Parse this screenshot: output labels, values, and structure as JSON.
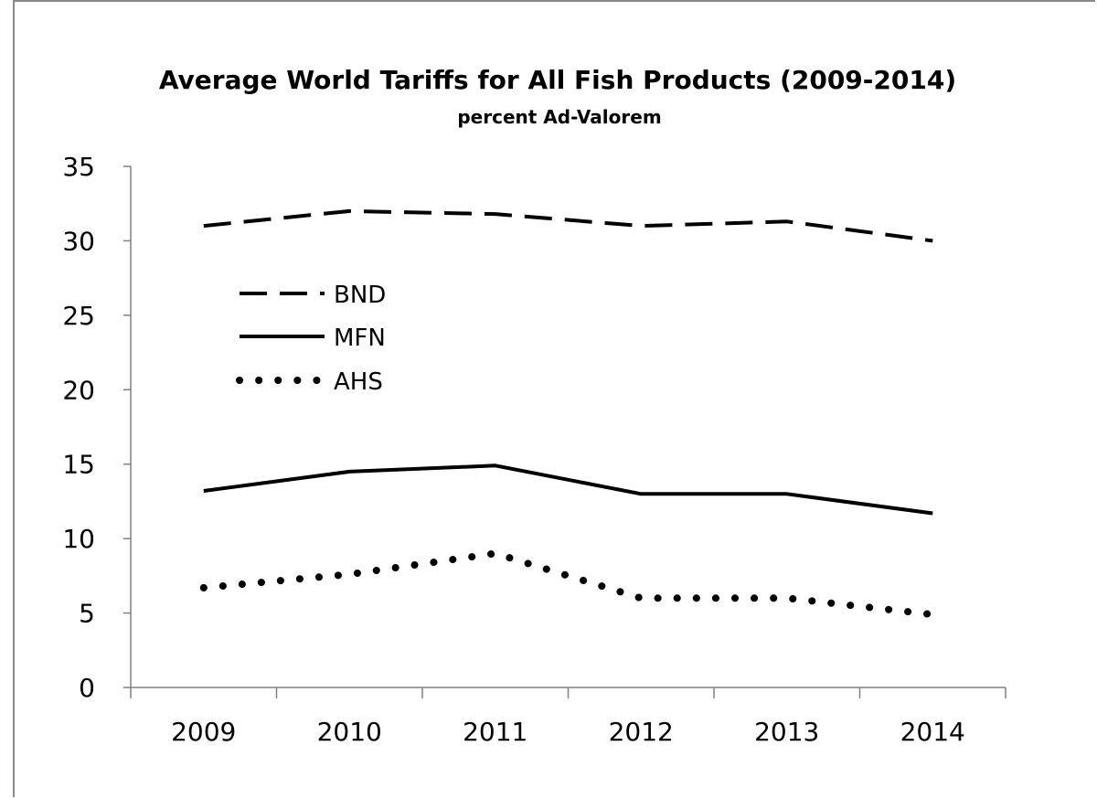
{
  "chart_data": {
    "type": "line",
    "title": "Average World Tariffs for All Fish Products (2009-2014)",
    "subtitle": "percent Ad-Valorem",
    "xlabel": "",
    "ylabel": "",
    "categories": [
      "2009",
      "2010",
      "2011",
      "2012",
      "2013",
      "2014"
    ],
    "ylim": [
      0,
      35
    ],
    "yticks": [
      0,
      5,
      10,
      15,
      20,
      25,
      30,
      35
    ],
    "grid": false,
    "legend_position": "upper-left inside plot",
    "series": [
      {
        "name": "BND",
        "style": "dashed",
        "color": "#000000",
        "values": [
          31.0,
          32.0,
          31.8,
          31.0,
          31.3,
          30.0
        ]
      },
      {
        "name": "MFN",
        "style": "solid",
        "color": "#000000",
        "values": [
          13.2,
          14.5,
          14.9,
          13.0,
          13.0,
          11.7
        ]
      },
      {
        "name": "AHS",
        "style": "dotted",
        "color": "#000000",
        "values": [
          6.7,
          7.6,
          9.0,
          6.0,
          6.0,
          4.9
        ]
      }
    ]
  }
}
